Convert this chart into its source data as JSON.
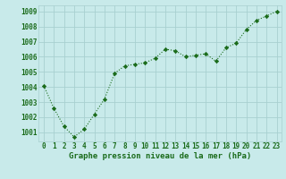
{
  "x": [
    0,
    1,
    2,
    3,
    4,
    5,
    6,
    7,
    8,
    9,
    10,
    11,
    12,
    13,
    14,
    15,
    16,
    17,
    18,
    19,
    20,
    21,
    22,
    23
  ],
  "y": [
    1004.1,
    1002.6,
    1001.4,
    1000.7,
    1001.2,
    1002.2,
    1003.2,
    1004.9,
    1005.4,
    1005.5,
    1005.6,
    1005.9,
    1006.5,
    1006.4,
    1006.0,
    1006.1,
    1006.2,
    1005.7,
    1006.6,
    1006.9,
    1007.8,
    1008.4,
    1008.7,
    1009.0
  ],
  "ylim": [
    1000.4,
    1009.4
  ],
  "yticks": [
    1001,
    1002,
    1003,
    1004,
    1005,
    1006,
    1007,
    1008,
    1009
  ],
  "xticks": [
    0,
    1,
    2,
    3,
    4,
    5,
    6,
    7,
    8,
    9,
    10,
    11,
    12,
    13,
    14,
    15,
    16,
    17,
    18,
    19,
    20,
    21,
    22,
    23
  ],
  "xlabel": "Graphe pression niveau de la mer (hPa)",
  "line_color": "#1a6b1a",
  "marker": "D",
  "marker_size": 2.2,
  "background_color": "#c8eaea",
  "grid_color": "#a8d0d0",
  "xlabel_color": "#1a6b1a",
  "tick_color": "#1a6b1a",
  "tick_fontsize": 5.5,
  "xlabel_fontsize": 6.5
}
